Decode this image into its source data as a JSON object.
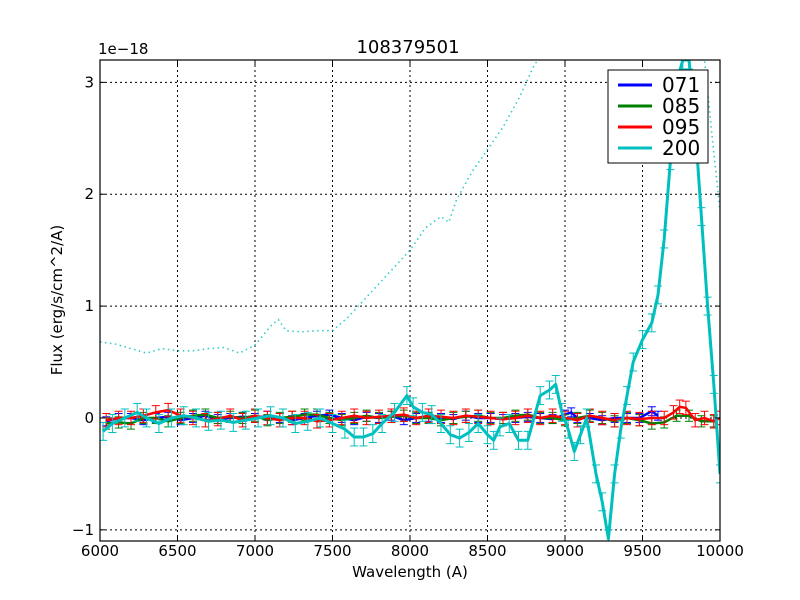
{
  "chart_data": {
    "type": "line",
    "title": "108379501",
    "xlabel": "Wavelength (A)",
    "ylabel": "Flux (erg/s/cm^2/A)",
    "y_offset_label": "1e−18",
    "xlim": [
      6000,
      10000
    ],
    "ylim": [
      -1.1,
      3.2
    ],
    "xticks": [
      6000,
      6500,
      7000,
      7500,
      8000,
      8500,
      9000,
      9500,
      10000
    ],
    "xtick_labels": [
      "6000",
      "6500",
      "7000",
      "7500",
      "8000",
      "8500",
      "9000",
      "9500",
      "10000"
    ],
    "yticks": [
      -1,
      0,
      1,
      2,
      3
    ],
    "ytick_labels": [
      "−1",
      "0",
      "1",
      "2",
      "3"
    ],
    "grid": true,
    "legend_position": "upper right",
    "series": [
      {
        "name": "071",
        "color": "#0000ff",
        "style": "solid+errorbars",
        "x": [
          6040,
          6120,
          6200,
          6280,
          6360,
          6440,
          6520,
          6600,
          6680,
          6760,
          6840,
          6920,
          7000,
          7080,
          7160,
          7240,
          7320,
          7400,
          7480,
          7560,
          7640,
          7720,
          7800,
          7880,
          7960,
          8040,
          8120,
          8200,
          8280,
          8360,
          8440,
          8520,
          8600,
          8680,
          8760,
          8840,
          8920,
          9000,
          9040,
          9080,
          9160,
          9240,
          9320,
          9400,
          9480,
          9560,
          9600
        ],
        "y": [
          -0.03,
          0.0,
          0.0,
          -0.02,
          0.0,
          0.01,
          -0.02,
          0.0,
          0.02,
          -0.01,
          0.0,
          0.01,
          0.0,
          0.02,
          0.0,
          -0.02,
          0.0,
          0.02,
          0.03,
          0.0,
          -0.02,
          0.01,
          0.0,
          0.02,
          -0.02,
          0.0,
          0.01,
          0.0,
          -0.01,
          0.02,
          0.0,
          0.0,
          -0.01,
          0.0,
          0.01,
          0.0,
          -0.01,
          0.03,
          0.05,
          0.0,
          0.0,
          -0.02,
          0.0,
          0.0,
          0.0,
          0.06,
          0.02
        ],
        "yerr": 0.04
      },
      {
        "name": "085",
        "color": "#008000",
        "style": "solid+errorbars",
        "x": [
          6040,
          6120,
          6200,
          6280,
          6360,
          6440,
          6520,
          6600,
          6680,
          6760,
          6840,
          6920,
          7000,
          7080,
          7160,
          7240,
          7320,
          7400,
          7480,
          7560,
          7640,
          7720,
          7800,
          7880,
          7960,
          8040,
          8120,
          8200,
          8280,
          8360,
          8440,
          8520,
          8600,
          8680,
          8760,
          8840,
          8920,
          9000,
          9080,
          9160,
          9240,
          9320,
          9400,
          9480,
          9560,
          9640,
          9720,
          9800,
          9880,
          9960
        ],
        "y": [
          -0.05,
          -0.04,
          -0.05,
          0.0,
          0.0,
          -0.03,
          0.0,
          0.02,
          0.03,
          0.0,
          0.01,
          0.0,
          0.02,
          -0.02,
          0.0,
          0.01,
          0.03,
          0.03,
          0.0,
          -0.02,
          0.0,
          0.02,
          0.0,
          0.01,
          0.02,
          0.0,
          0.0,
          -0.02,
          0.0,
          0.01,
          0.02,
          0.0,
          0.0,
          0.02,
          0.03,
          0.0,
          0.0,
          -0.02,
          0.0,
          0.02,
          0.0,
          -0.03,
          0.0,
          -0.02,
          -0.05,
          -0.04,
          0.02,
          0.02,
          -0.03,
          -0.03
        ],
        "yerr": 0.05
      },
      {
        "name": "095",
        "color": "#ff0000",
        "style": "solid+errorbars",
        "x": [
          6040,
          6120,
          6200,
          6280,
          6360,
          6440,
          6520,
          6600,
          6680,
          6760,
          6840,
          6920,
          7000,
          7080,
          7160,
          7240,
          7320,
          7400,
          7480,
          7560,
          7640,
          7720,
          7800,
          7880,
          7960,
          8040,
          8120,
          8200,
          8280,
          8360,
          8440,
          8520,
          8600,
          8680,
          8760,
          8840,
          8920,
          9000,
          9080,
          9160,
          9240,
          9320,
          9400,
          9480,
          9560,
          9640,
          9700,
          9740,
          9780,
          9840,
          9900,
          9960,
          10000
        ],
        "y": [
          -0.02,
          0.0,
          0.0,
          0.02,
          0.05,
          0.07,
          0.02,
          0.0,
          -0.02,
          -0.01,
          0.02,
          -0.02,
          0.02,
          0.0,
          -0.02,
          0.0,
          0.0,
          -0.03,
          -0.02,
          0.0,
          0.02,
          0.0,
          0.01,
          0.02,
          0.03,
          0.0,
          0.02,
          0.01,
          0.0,
          0.02,
          0.01,
          0.0,
          -0.01,
          0.0,
          0.02,
          0.0,
          0.02,
          0.0,
          -0.02,
          0.02,
          0.0,
          -0.02,
          0.0,
          -0.01,
          0.0,
          0.0,
          0.05,
          0.1,
          0.09,
          -0.02,
          0.0,
          -0.03,
          0.0
        ],
        "yerr": 0.06
      },
      {
        "name": "200",
        "color": "#00bfbf",
        "style": "solid+errorbars",
        "x": [
          6020,
          6080,
          6160,
          6240,
          6300,
          6380,
          6460,
          6540,
          6620,
          6700,
          6780,
          6860,
          6940,
          7020,
          7100,
          7180,
          7260,
          7340,
          7420,
          7500,
          7580,
          7640,
          7700,
          7760,
          7820,
          7900,
          7980,
          8020,
          8080,
          8140,
          8200,
          8260,
          8320,
          8380,
          8440,
          8500,
          8540,
          8580,
          8640,
          8700,
          8760,
          8840,
          8900,
          8940,
          8980,
          9020,
          9060,
          9100,
          9140,
          9200,
          9240,
          9280,
          9320,
          9360,
          9400,
          9440,
          9500,
          9560,
          9600,
          9640,
          9680,
          9720,
          9760,
          9800,
          9840,
          9880,
          9920,
          9960,
          10000
        ],
        "y": [
          -0.12,
          -0.05,
          0.0,
          0.05,
          0.0,
          -0.05,
          0.0,
          0.02,
          0.0,
          -0.03,
          -0.02,
          -0.04,
          -0.02,
          0.0,
          0.02,
          0.0,
          -0.05,
          -0.03,
          0.0,
          -0.05,
          -0.1,
          -0.17,
          -0.17,
          -0.14,
          -0.05,
          0.05,
          0.2,
          0.1,
          0.05,
          0.03,
          -0.05,
          -0.15,
          -0.18,
          -0.13,
          -0.05,
          -0.15,
          -0.2,
          -0.08,
          -0.05,
          -0.2,
          -0.2,
          0.2,
          0.25,
          0.3,
          0.05,
          -0.1,
          -0.3,
          -0.15,
          0.0,
          -0.5,
          -0.75,
          -1.08,
          -0.5,
          -0.1,
          0.2,
          0.5,
          0.7,
          0.85,
          1.1,
          1.6,
          2.3,
          3.0,
          3.2,
          3.2,
          2.6,
          1.8,
          1.0,
          0.3,
          -0.5
        ],
        "yerr": 0.08
      },
      {
        "name": "200 (template, dotted)",
        "color": "#00bfbf",
        "style": "dotted",
        "in_legend": false,
        "x": [
          6000,
          6100,
          6200,
          6300,
          6400,
          6500,
          6600,
          6700,
          6800,
          6900,
          7000,
          7100,
          7150,
          7200,
          7300,
          7400,
          7500,
          7600,
          7700,
          7800,
          7900,
          8000,
          8100,
          8200,
          8250,
          8300,
          8400,
          8500,
          8600,
          8700,
          8800,
          8850,
          9900,
          9950,
          10000
        ],
        "y": [
          0.68,
          0.66,
          0.62,
          0.58,
          0.62,
          0.6,
          0.6,
          0.62,
          0.63,
          0.58,
          0.65,
          0.82,
          0.88,
          0.78,
          0.77,
          0.78,
          0.78,
          0.9,
          1.05,
          1.2,
          1.35,
          1.5,
          1.7,
          1.8,
          1.75,
          1.95,
          2.2,
          2.4,
          2.6,
          2.85,
          3.15,
          3.25,
          3.2,
          2.5,
          1.85
        ]
      }
    ]
  }
}
